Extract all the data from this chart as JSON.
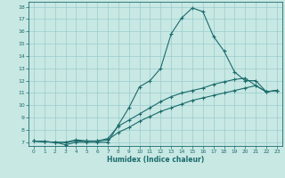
{
  "xlabel": "Humidex (Indice chaleur)",
  "bg_color": "#c8e8e4",
  "grid_color": "#99cccc",
  "line_color": "#1a6b6b",
  "xlim": [
    -0.5,
    23.5
  ],
  "ylim": [
    6.7,
    18.4
  ],
  "xticks": [
    0,
    1,
    2,
    3,
    4,
    5,
    6,
    7,
    8,
    9,
    10,
    11,
    12,
    13,
    14,
    15,
    16,
    17,
    18,
    19,
    20,
    21,
    22,
    23
  ],
  "yticks": [
    7,
    8,
    9,
    10,
    11,
    12,
    13,
    14,
    15,
    16,
    17,
    18
  ],
  "series1_x": [
    0,
    1,
    2,
    3,
    4,
    5,
    6,
    7,
    8,
    9,
    10,
    11,
    12,
    13,
    14,
    15,
    16,
    17,
    18,
    19,
    20,
    21,
    22,
    23
  ],
  "series1_y": [
    7.1,
    7.05,
    7.0,
    6.8,
    7.0,
    7.0,
    7.0,
    7.0,
    8.4,
    9.8,
    11.5,
    12.0,
    13.0,
    15.8,
    17.1,
    17.9,
    17.6,
    15.6,
    14.4,
    12.7,
    12.0,
    12.0,
    11.1,
    11.2
  ],
  "series2_x": [
    0,
    1,
    2,
    3,
    4,
    5,
    6,
    7,
    8,
    9,
    10,
    11,
    12,
    13,
    14,
    15,
    16,
    17,
    18,
    19,
    20,
    21,
    22,
    23
  ],
  "series2_y": [
    7.1,
    7.05,
    7.0,
    7.0,
    7.2,
    7.1,
    7.1,
    7.3,
    8.3,
    8.8,
    9.3,
    9.8,
    10.3,
    10.7,
    11.0,
    11.2,
    11.4,
    11.7,
    11.9,
    12.1,
    12.2,
    11.6,
    11.1,
    11.2
  ],
  "series3_x": [
    0,
    1,
    2,
    3,
    4,
    5,
    6,
    7,
    8,
    9,
    10,
    11,
    12,
    13,
    14,
    15,
    16,
    17,
    18,
    19,
    20,
    21,
    22,
    23
  ],
  "series3_y": [
    7.1,
    7.05,
    7.0,
    7.0,
    7.1,
    7.1,
    7.1,
    7.2,
    7.8,
    8.2,
    8.7,
    9.1,
    9.5,
    9.8,
    10.1,
    10.4,
    10.6,
    10.8,
    11.0,
    11.2,
    11.4,
    11.6,
    11.1,
    11.2
  ]
}
